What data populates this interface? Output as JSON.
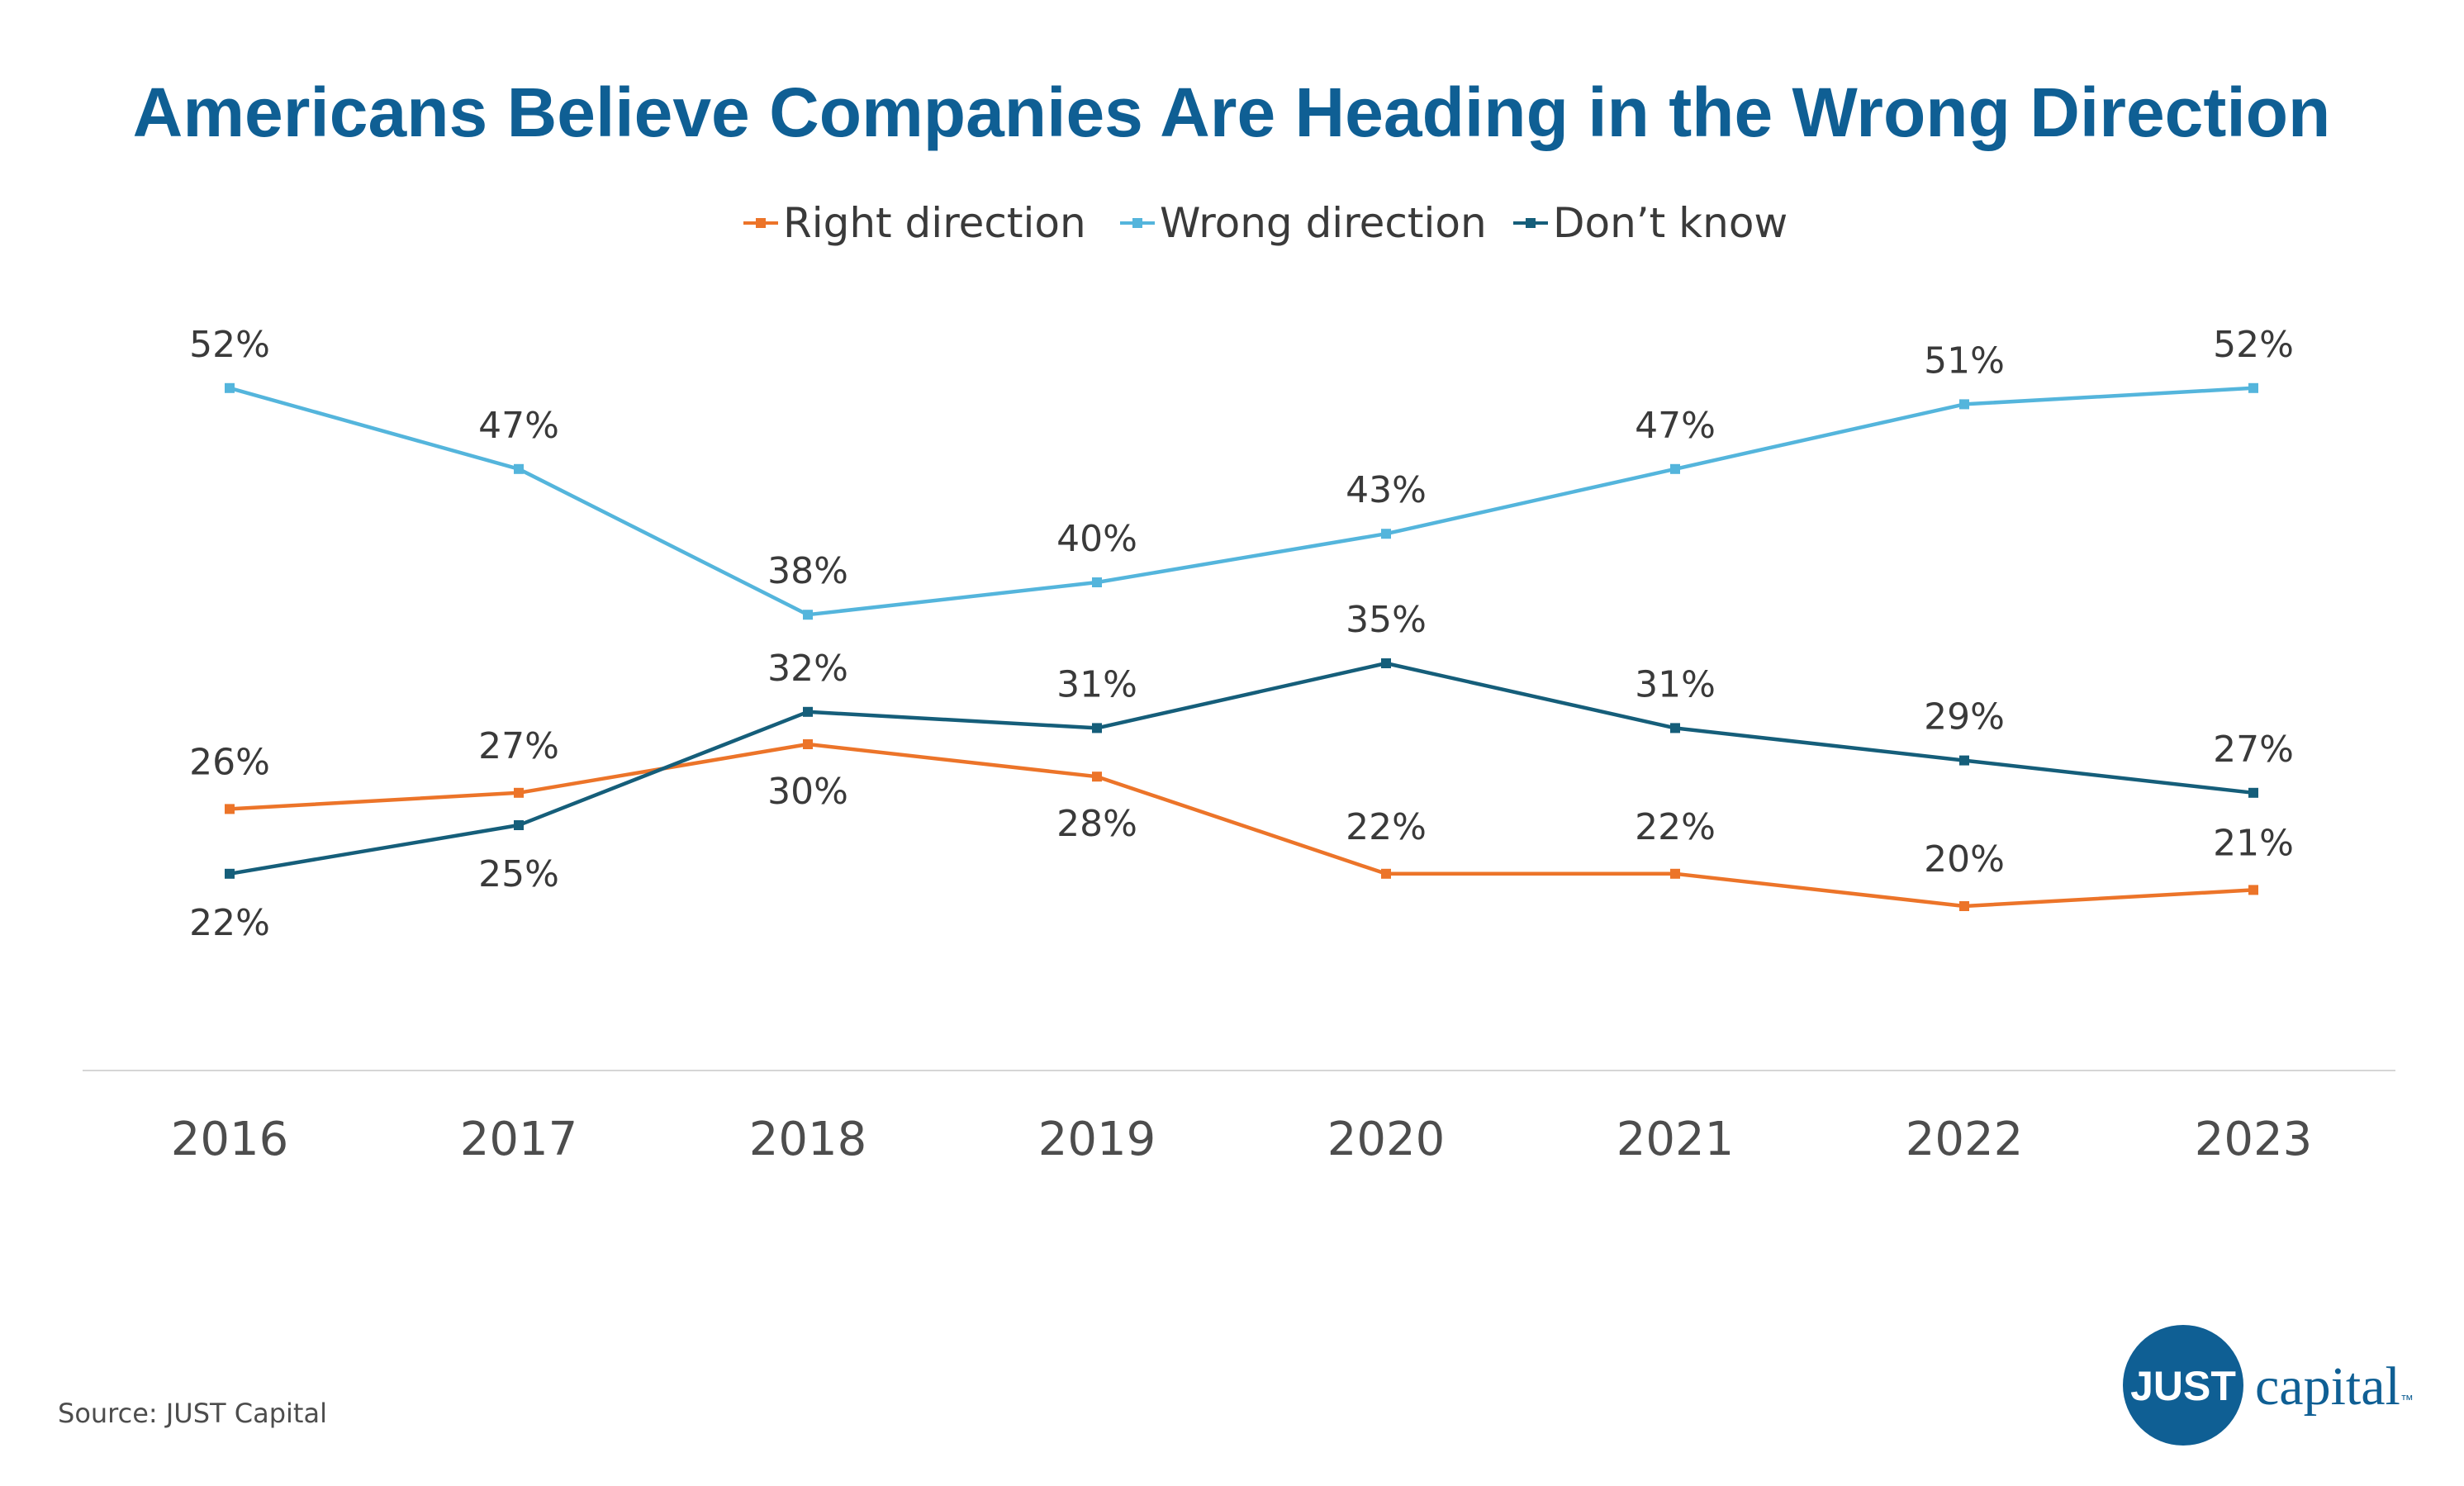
{
  "title": "Americans Believe Companies Are Heading in the Wrong Direction",
  "source": "Source: JUST Capital",
  "logo": {
    "brand": "JUST",
    "word": "capital",
    "tm": "™"
  },
  "colors": {
    "title": "#0f5f94",
    "axis": "#d6d6d6",
    "logo": "#0f5f94"
  },
  "chart_data": {
    "type": "line",
    "x": [
      "2016",
      "2017",
      "2018",
      "2019",
      "2020",
      "2021",
      "2022",
      "2023"
    ],
    "ylim": [
      0,
      60
    ],
    "grid": false,
    "legend_position": "top-center",
    "series": [
      {
        "name": "Right direction",
        "color": "#ec7429",
        "values": [
          26,
          27,
          30,
          28,
          22,
          22,
          20,
          21
        ],
        "labels": [
          "26%",
          "27%",
          "30%",
          "28%",
          "22%",
          "22%",
          "20%",
          "21%"
        ]
      },
      {
        "name": "Wrong direction",
        "color": "#54b5dc",
        "values": [
          52,
          47,
          38,
          40,
          43,
          47,
          51,
          52
        ],
        "labels": [
          "52%",
          "47%",
          "38%",
          "40%",
          "43%",
          "47%",
          "51%",
          "52%"
        ]
      },
      {
        "name": "Don’t know",
        "color": "#155e7a",
        "values": [
          22,
          25,
          32,
          31,
          35,
          31,
          29,
          27
        ],
        "labels": [
          "22%",
          "25%",
          "32%",
          "31%",
          "35%",
          "31%",
          "29%",
          "27%"
        ]
      }
    ]
  }
}
